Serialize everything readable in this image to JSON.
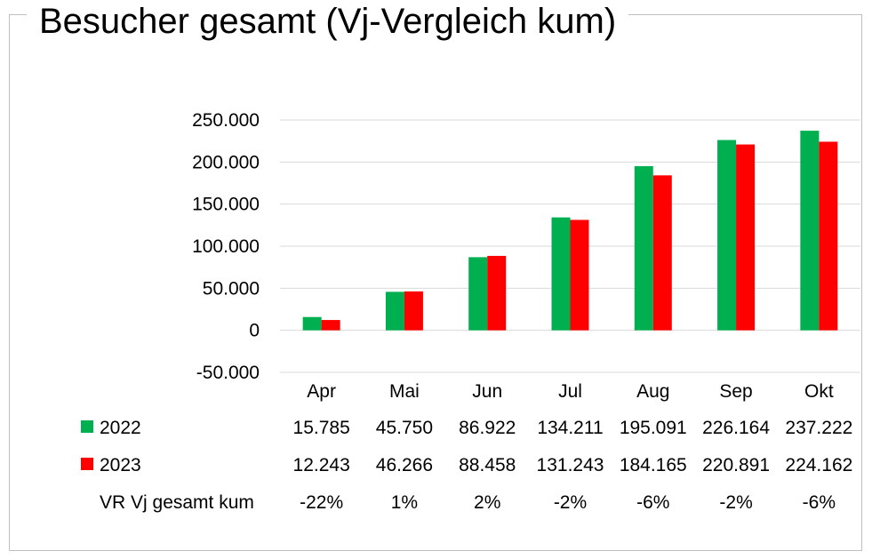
{
  "chart_data": {
    "type": "bar",
    "title": "Besucher gesamt (Vj-Vergleich kum)",
    "categories": [
      "Apr",
      "Mai",
      "Jun",
      "Jul",
      "Aug",
      "Sep",
      "Okt"
    ],
    "series": [
      {
        "name": "2022",
        "color": "#00b050",
        "values": [
          15785,
          45750,
          86922,
          134211,
          195091,
          226164,
          237222
        ],
        "labels": [
          "15.785",
          "45.750",
          "86.922",
          "134.211",
          "195.091",
          "226.164",
          "237.222"
        ]
      },
      {
        "name": "2023",
        "color": "#ff0000",
        "values": [
          12243,
          46266,
          88458,
          131243,
          184165,
          220891,
          224162
        ],
        "labels": [
          "12.243",
          "46.266",
          "88.458",
          "131.243",
          "184.165",
          "220.891",
          "224.162"
        ]
      }
    ],
    "extra_row": {
      "name": "VR Vj gesamt kum",
      "values": [
        "-22%",
        "1%",
        "2%",
        "-2%",
        "-6%",
        "-2%",
        "-6%"
      ]
    },
    "ylim": [
      -50000,
      250000
    ],
    "yticks": [
      -50000,
      0,
      50000,
      100000,
      150000,
      200000,
      250000
    ],
    "ytick_labels": [
      "-50.000",
      "0",
      "50.000",
      "100.000",
      "150.000",
      "200.000",
      "250.000"
    ],
    "grid": true,
    "legend": "data-table"
  }
}
